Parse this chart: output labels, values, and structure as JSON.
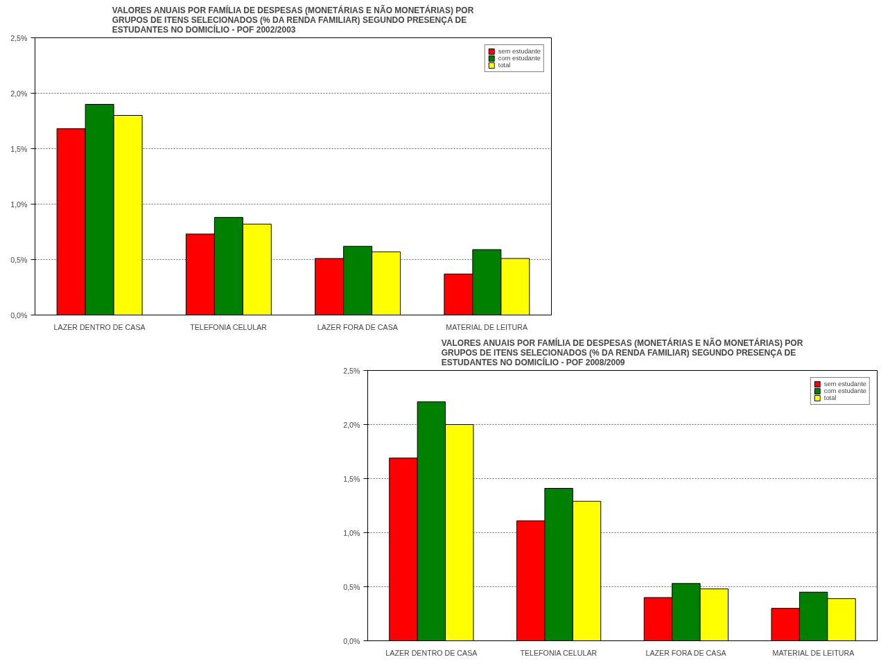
{
  "chart_data": [
    {
      "type": "bar",
      "title": "VALORES ANUAIS POR FAMÍLIA DE DESPESAS (MONETÁRIAS E NÃO MONETÁRIAS) POR\nGRUPOS DE ITENS SELECIONADOS (% DA RENDA FAMILIAR) SEGUNDO PRESENÇA DE\nESTUDANTES NO DOMICÍLIO - POF 2002/2003",
      "categories": [
        "LAZER DENTRO DE CASA",
        "TELEFONIA CELULAR",
        "LAZER FORA DE CASA",
        "MATERIAL DE LEITURA"
      ],
      "series": [
        {
          "name": "sem estudante",
          "color": "#ff0000",
          "values": [
            1.68,
            0.73,
            0.51,
            0.37
          ]
        },
        {
          "name": "com estudante",
          "color": "#008000",
          "values": [
            1.9,
            0.88,
            0.62,
            0.59
          ]
        },
        {
          "name": "total",
          "color": "#ffff00",
          "values": [
            1.8,
            0.82,
            0.57,
            0.51
          ]
        }
      ],
      "ylim": [
        0,
        2.5
      ],
      "yticks": [
        {
          "value": 0,
          "label": "0,0%"
        },
        {
          "value": 0.5,
          "label": "0,5%"
        },
        {
          "value": 1.0,
          "label": "1,0%"
        },
        {
          "value": 1.5,
          "label": "1,5%"
        },
        {
          "value": 2.0,
          "label": "2,0%"
        },
        {
          "value": 2.5,
          "label": "2,5%"
        }
      ],
      "grid": "y",
      "legend": "top right"
    },
    {
      "type": "bar",
      "title": "VALORES ANUAIS POR FAMÍLIA DE DESPESAS (MONETÁRIAS E NÃO MONETÁRIAS) POR\nGRUPOS DE ITENS SELECIONADOS (% DA RENDA FAMILIAR)  SEGUNDO PRESENÇA DE\nESTUDANTES NO DOMICÍLIO - POF 2008/2009",
      "categories": [
        "LAZER DENTRO DE CASA",
        "TELEFONIA CELULAR",
        "LAZER FORA DE CASA",
        "MATERIAL DE LEITURA"
      ],
      "series": [
        {
          "name": "sem estudante",
          "color": "#ff0000",
          "values": [
            1.69,
            1.11,
            0.4,
            0.3
          ]
        },
        {
          "name": "com estudante",
          "color": "#008000",
          "values": [
            2.21,
            1.41,
            0.53,
            0.45
          ]
        },
        {
          "name": "total",
          "color": "#ffff00",
          "values": [
            2.0,
            1.29,
            0.48,
            0.39
          ]
        }
      ],
      "ylim": [
        0,
        2.5
      ],
      "yticks": [
        {
          "value": 0,
          "label": "0,0%"
        },
        {
          "value": 0.5,
          "label": "0,5%"
        },
        {
          "value": 1.0,
          "label": "1,0%"
        },
        {
          "value": 1.5,
          "label": "1,5%"
        },
        {
          "value": 2.0,
          "label": "2,0%"
        },
        {
          "value": 2.5,
          "label": "2,5%"
        }
      ],
      "grid": "y",
      "legend": "top right"
    }
  ]
}
